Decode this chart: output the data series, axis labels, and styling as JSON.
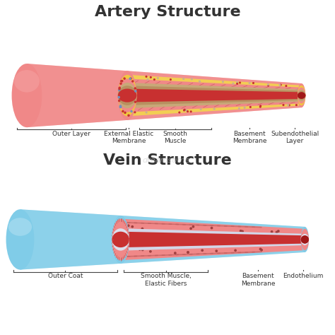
{
  "bg_color": "#ffffff",
  "artery_title": "Artery Structure",
  "vein_title": "Vein Structure",
  "title_fontsize": 16,
  "label_fontsize": 7,
  "artery_colors": {
    "outer": "#f08888",
    "outer_light": "#f5a0a0",
    "outer_dark": "#d86060",
    "elastic": "#f0c840",
    "elastic_light": "#f8dc80",
    "smooth_muscle": "#f08888",
    "smooth_muscle_dark": "#c86060",
    "smooth_muscle_light": "#f5a8a8",
    "basement": "#c8a878",
    "subendothelial": "#b89060",
    "inner": "#c83030",
    "inner_dark": "#a01818",
    "dot_red": "#c83030",
    "dot_blue": "#7090c0",
    "dot_tan": "#c8b090"
  },
  "vein_colors": {
    "outer": "#80cce8",
    "outer_light": "#a8ddf0",
    "outer_dark": "#50a8cc",
    "smooth_muscle": "#f08888",
    "smooth_muscle_dark": "#c06060",
    "smooth_muscle_light": "#f5aaaa",
    "smooth_muscle_ridge": "#d07070",
    "basement": "#dce0ee",
    "basement_dark": "#c0c4dc",
    "inner": "#c83030",
    "inner_dark": "#a01818",
    "dot_dark": "#a04040"
  },
  "artery_labels": [
    "Outer Layer",
    "External Elastic\nMembrane",
    "Smooth\nMuscle",
    "Basement\nMembrane",
    "Subendothelial\nLayer"
  ],
  "vein_labels": [
    "Outer Coat",
    "Smooth Muscle,\nElastic Fibers",
    "Basement\nMembrane",
    "Endothelium"
  ],
  "watermark": "dreamstime.",
  "watermark_color": "#cccccc"
}
